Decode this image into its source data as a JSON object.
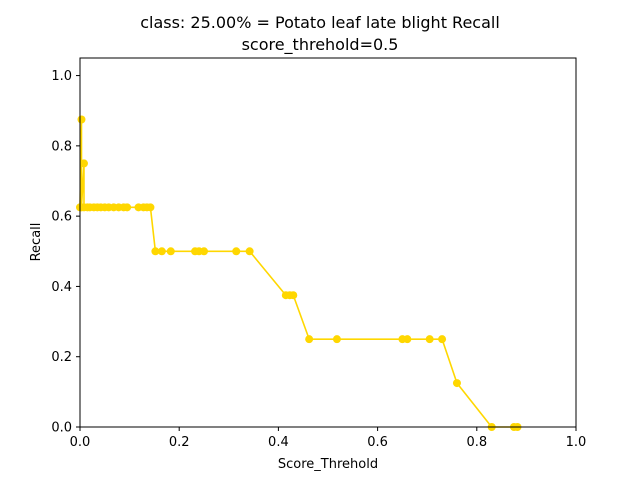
{
  "chart_data": {
    "type": "line",
    "title_lines": [
      "class: 25.00% = Potato leaf late blight Recall",
      "score_threhold=0.5"
    ],
    "xlabel": "Score_Threhold",
    "ylabel": "Recall",
    "xlim": [
      0.0,
      1.0
    ],
    "ylim": [
      0.0,
      1.05
    ],
    "xticks": [
      "0.0",
      "0.2",
      "0.4",
      "0.6",
      "0.8",
      "1.0"
    ],
    "xtick_values": [
      0.0,
      0.2,
      0.4,
      0.6,
      0.8,
      1.0
    ],
    "yticks": [
      "0.0",
      "0.2",
      "0.4",
      "0.6",
      "0.8",
      "1.0"
    ],
    "ytick_values": [
      0.0,
      0.2,
      0.4,
      0.6,
      0.8,
      1.0
    ],
    "grid": false,
    "color": "#ffd700",
    "x": [
      0.0,
      0.003,
      0.003,
      0.008,
      0.008,
      0.015,
      0.02,
      0.028,
      0.035,
      0.042,
      0.05,
      0.058,
      0.068,
      0.078,
      0.088,
      0.095,
      0.118,
      0.128,
      0.135,
      0.142,
      0.152,
      0.165,
      0.183,
      0.232,
      0.24,
      0.25,
      0.315,
      0.342,
      0.415,
      0.423,
      0.43,
      0.462,
      0.518,
      0.65,
      0.66,
      0.705,
      0.73,
      0.76,
      0.83,
      0.875,
      0.882
    ],
    "y": [
      0.625,
      0.875,
      0.625,
      0.75,
      0.625,
      0.625,
      0.625,
      0.625,
      0.625,
      0.625,
      0.625,
      0.625,
      0.625,
      0.625,
      0.625,
      0.625,
      0.625,
      0.625,
      0.625,
      0.625,
      0.5,
      0.5,
      0.5,
      0.5,
      0.5,
      0.5,
      0.5,
      0.5,
      0.375,
      0.375,
      0.375,
      0.25,
      0.25,
      0.25,
      0.25,
      0.25,
      0.25,
      0.125,
      0.0,
      0.0,
      0.0
    ]
  }
}
